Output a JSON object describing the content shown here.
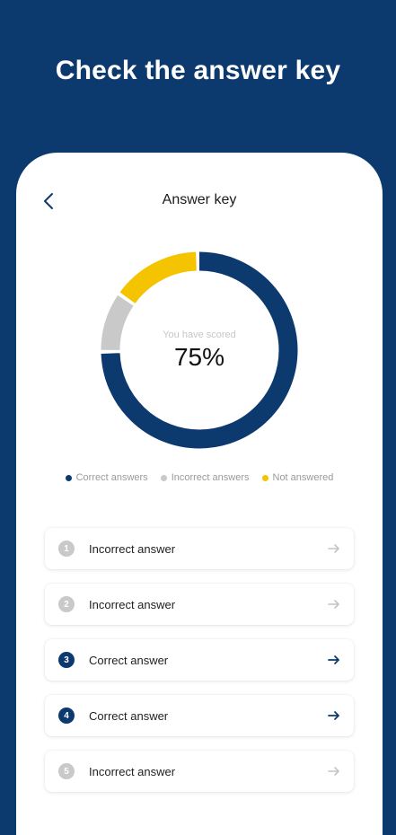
{
  "headline": "Check the answer key",
  "screen": {
    "title": "Answer key",
    "back_icon": "chevron-left-icon"
  },
  "score": {
    "label": "You have scored",
    "value": "75%"
  },
  "chart_data": {
    "type": "pie",
    "categories": [
      "Correct answers",
      "Incorrect answers",
      "Not answered"
    ],
    "values": [
      75,
      10,
      15
    ],
    "colors": [
      "#0d3a6e",
      "#c9c9c9",
      "#f5c400"
    ],
    "legend": "bottom"
  },
  "legend": [
    {
      "label": "Correct answers",
      "color": "#0d3a6e"
    },
    {
      "label": "Incorrect answers",
      "color": "#c9c9c9"
    },
    {
      "label": "Not answered",
      "color": "#f5c400"
    }
  ],
  "answers": [
    {
      "number": "1",
      "label": "Incorrect answer",
      "status": "incorrect"
    },
    {
      "number": "2",
      "label": "Incorrect answer",
      "status": "incorrect"
    },
    {
      "number": "3",
      "label": "Correct answer",
      "status": "correct"
    },
    {
      "number": "4",
      "label": "Correct answer",
      "status": "correct"
    },
    {
      "number": "5",
      "label": "Incorrect answer",
      "status": "incorrect"
    }
  ],
  "colors": {
    "brand": "#0d3a6e",
    "incorrect": "#c9c9c9",
    "not_answered": "#f5c400"
  }
}
